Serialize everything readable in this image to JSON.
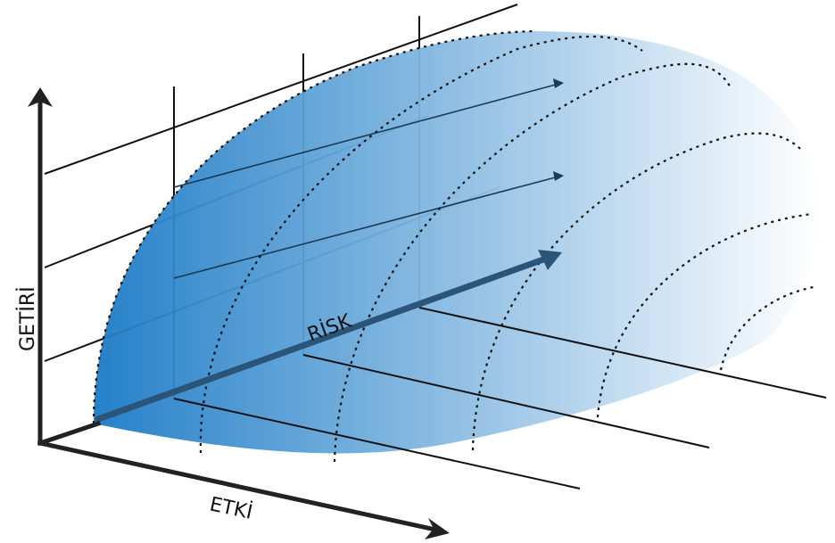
{
  "labels": {
    "return_axis": "GETİRİ",
    "impact_axis": "ETKİ",
    "risk_axis": "RİSK"
  },
  "colors": {
    "surface_dark": "#1a7ac6",
    "surface_light": "#ffffff",
    "axis": "#222222",
    "grid_line": "#111111",
    "risk_arrow": "#2b5578",
    "contour": "#111111"
  },
  "icons": {
    "axis_arrowhead": "arrow-head-icon"
  }
}
